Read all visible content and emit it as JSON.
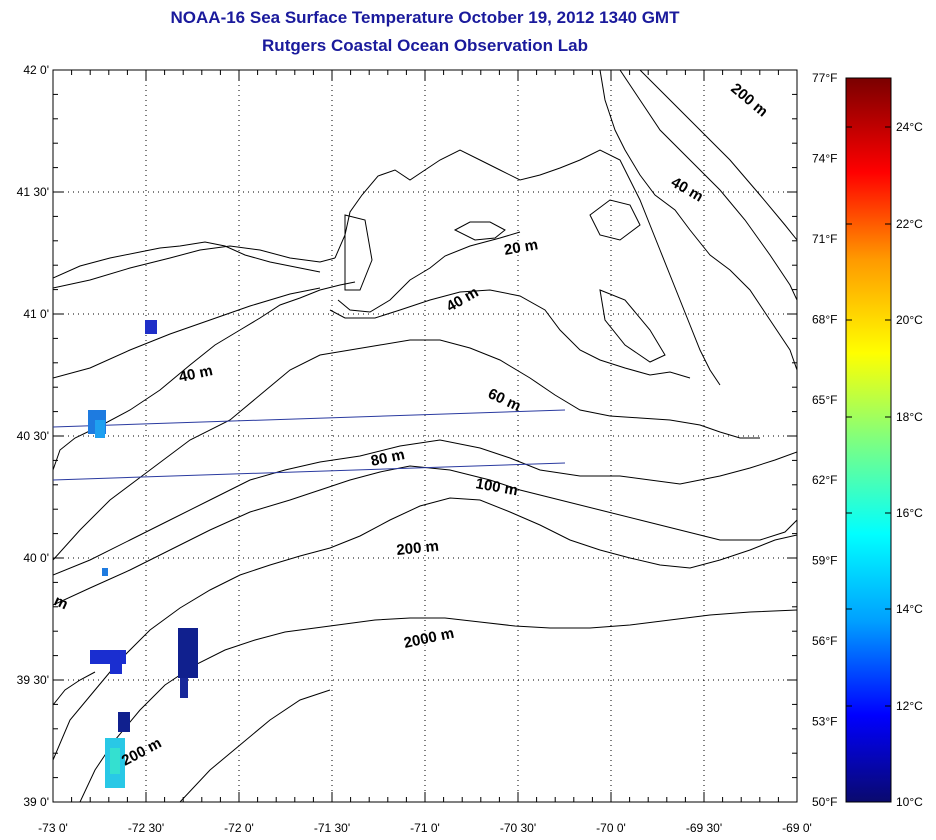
{
  "title_line1": "NOAA-16 Sea Surface Temperature October 19, 2012 1340 GMT",
  "title_line2": "Rutgers Coastal Ocean Observation Lab",
  "x_ticks": [
    "-73 0'",
    "-72 30'",
    "-72 0'",
    "-71 30'",
    "-71 0'",
    "-70 30'",
    "-70 0'",
    "-69 30'",
    "-69 0'"
  ],
  "y_ticks": [
    "42 0'",
    "41 30'",
    "41 0'",
    "40 30'",
    "40 0'",
    "39 30'",
    "39 0'"
  ],
  "fahrenheit_ticks": [
    "77°F",
    "74°F",
    "71°F",
    "68°F",
    "65°F",
    "62°F",
    "59°F",
    "56°F",
    "53°F",
    "50°F"
  ],
  "celsius_ticks": [
    "24°C",
    "22°C",
    "20°C",
    "18°C",
    "16°C",
    "14°C",
    "12°C",
    "10°C"
  ],
  "contour_labels": [
    "200 m",
    "40 m",
    "20 m",
    "40 m",
    "40 m",
    "60 m",
    "80 m",
    "100 m",
    "200 m",
    "2000 m",
    "200 m",
    "m"
  ],
  "colors": {
    "title": "#1a1a9c",
    "grid": "#000000",
    "track": "#2a3aa0"
  }
}
